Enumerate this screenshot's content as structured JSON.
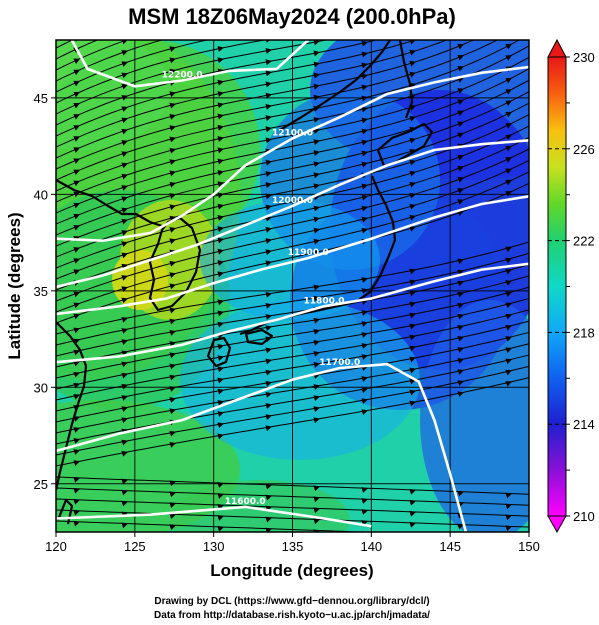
{
  "chart_data": {
    "type": "map-contour-streamline",
    "title": "MSM 18Z06May2024 (200.0hPa)",
    "xlabel": "Longitude (degrees)",
    "ylabel": "Latitude  (degrees)",
    "xlim": [
      120,
      150
    ],
    "ylim": [
      22.5,
      48
    ],
    "x_ticks": [
      120,
      125,
      130,
      135,
      140,
      145,
      150
    ],
    "y_ticks": [
      25,
      30,
      35,
      40,
      45
    ],
    "grid": true,
    "colorbar": {
      "min": 210,
      "max": 230,
      "ticks": [
        210,
        214,
        218,
        222,
        226,
        230
      ],
      "extend": "both",
      "placement": "right"
    },
    "height_contours": [
      {
        "label": "11600.0",
        "points": [
          [
            120,
            23.2
          ],
          [
            126,
            23.4
          ],
          [
            132,
            23.8
          ],
          [
            137,
            23.2
          ],
          [
            140,
            22.8
          ]
        ]
      },
      {
        "label": "11700.0",
        "points": [
          [
            120,
            26.7
          ],
          [
            124,
            27.6
          ],
          [
            128,
            28.3
          ],
          [
            132,
            29.5
          ],
          [
            135,
            30.4
          ],
          [
            138,
            31.0
          ],
          [
            141,
            31.2
          ],
          [
            143,
            30.3
          ],
          [
            144,
            28.3
          ],
          [
            145,
            25.5
          ],
          [
            146,
            22.5
          ]
        ]
      },
      {
        "label": "11800.0",
        "points": [
          [
            120,
            31.3
          ],
          [
            124,
            31.6
          ],
          [
            128,
            32.2
          ],
          [
            131,
            32.9
          ],
          [
            134,
            33.5
          ],
          [
            137,
            34.2
          ],
          [
            140,
            34.6
          ],
          [
            144,
            35.5
          ],
          [
            147,
            36.1
          ],
          [
            150,
            36.4
          ]
        ]
      },
      {
        "label": "11900.0",
        "points": [
          [
            120,
            33.8
          ],
          [
            124,
            34.2
          ],
          [
            127,
            34.6
          ],
          [
            130,
            35.4
          ],
          [
            133,
            36.1
          ],
          [
            136,
            36.7
          ],
          [
            140,
            37.7
          ],
          [
            144,
            38.8
          ],
          [
            147,
            39.5
          ],
          [
            150,
            39.9
          ]
        ]
      },
      {
        "label": "12000.0",
        "points": [
          [
            120,
            35.2
          ],
          [
            123,
            35.8
          ],
          [
            126,
            36.6
          ],
          [
            129,
            37.4
          ],
          [
            132,
            38.4
          ],
          [
            135,
            39.4
          ],
          [
            138,
            40.5
          ],
          [
            141,
            41.5
          ],
          [
            144,
            42.3
          ],
          [
            147,
            42.6
          ],
          [
            150,
            42.8
          ]
        ]
      },
      {
        "label": "12100.0",
        "points": [
          [
            120,
            37.7
          ],
          [
            123,
            37.6
          ],
          [
            126,
            38.0
          ],
          [
            128,
            38.9
          ],
          [
            130,
            40.0
          ],
          [
            132,
            41.5
          ],
          [
            135,
            42.9
          ],
          [
            138,
            44.0
          ],
          [
            141,
            45.2
          ],
          [
            144,
            45.8
          ],
          [
            147,
            46.3
          ],
          [
            150,
            46.6
          ]
        ]
      },
      {
        "label": "12200.0",
        "points": [
          [
            121,
            48
          ],
          [
            122,
            46.5
          ],
          [
            125,
            45.6
          ],
          [
            128,
            45.9
          ],
          [
            131,
            46.4
          ],
          [
            134,
            46.5
          ],
          [
            136,
            48
          ]
        ]
      }
    ]
  }
}
